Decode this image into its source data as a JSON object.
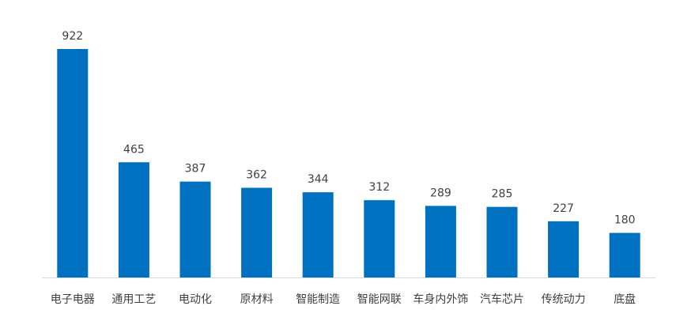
{
  "colors": {
    "bar": "#0070C0",
    "label_text": "#404040",
    "axis_line": "#D9D9D9",
    "background": "#FFFFFF"
  },
  "chart_data": {
    "type": "bar",
    "title": "",
    "xlabel": "",
    "ylabel": "",
    "categories": [
      "电子电器",
      "通用工艺",
      "电动化",
      "原材料",
      "智能制造",
      "智能网联",
      "车身内外饰",
      "汽车芯片",
      "传统动力",
      "底盘"
    ],
    "values": [
      922,
      465,
      387,
      362,
      344,
      312,
      289,
      285,
      227,
      180
    ],
    "ylim": [
      0,
      922
    ],
    "grid": false,
    "legend": "none",
    "data_labels": true
  }
}
